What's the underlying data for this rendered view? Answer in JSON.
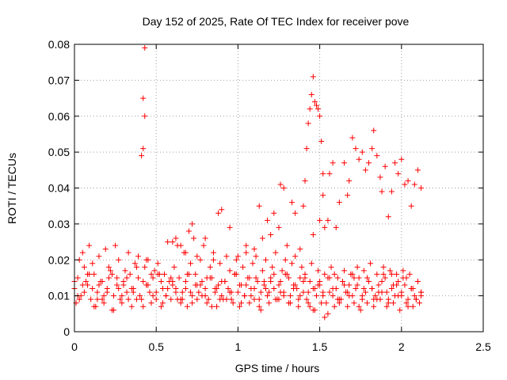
{
  "chart_data": {
    "type": "scatter",
    "title": "Day 152 of 2025, Rate Of TEC Index for receiver pove",
    "xlabel": "GPS time / hours",
    "ylabel": "ROTI / TECUs",
    "xlim": [
      0,
      2.5
    ],
    "ylim": [
      0,
      0.08
    ],
    "grid": true,
    "marker": "+",
    "x_ticks": [
      {
        "value": 0,
        "label": "0"
      },
      {
        "value": 0.5,
        "label": "0.5"
      },
      {
        "value": 1,
        "label": "1"
      },
      {
        "value": 1.5,
        "label": "1.5"
      },
      {
        "value": 2,
        "label": "2"
      },
      {
        "value": 2.5,
        "label": "2.5"
      }
    ],
    "y_ticks": [
      {
        "value": 0,
        "label": "0"
      },
      {
        "value": 0.01,
        "label": "0.01"
      },
      {
        "value": 0.02,
        "label": "0.02"
      },
      {
        "value": 0.03,
        "label": "0.03"
      },
      {
        "value": 0.04,
        "label": "0.04"
      },
      {
        "value": 0.05,
        "label": "0.05"
      },
      {
        "value": 0.06,
        "label": "0.06"
      },
      {
        "value": 0.07,
        "label": "0.07"
      },
      {
        "value": 0.08,
        "label": "0.08"
      }
    ],
    "series": [
      {
        "color": "#ff0000",
        "x": [
          0.0,
          0.02,
          0.04,
          0.06,
          0.08,
          0.1,
          0.12,
          0.14,
          0.16,
          0.18,
          0.2,
          0.22,
          0.24,
          0.26,
          0.28,
          0.3,
          0.32,
          0.34,
          0.36,
          0.38,
          0.4,
          0.42,
          0.44,
          0.46,
          0.48,
          0.5,
          0.52,
          0.54,
          0.56,
          0.58,
          0.6,
          0.62,
          0.64,
          0.66,
          0.68,
          0.7,
          0.72,
          0.74,
          0.76,
          0.78,
          0.8,
          0.82,
          0.84,
          0.86,
          0.88,
          0.9,
          0.92,
          0.94,
          0.96,
          0.98,
          1.0,
          1.02,
          1.04,
          1.06,
          1.08,
          1.1,
          1.12,
          1.14,
          1.16,
          1.18,
          1.2,
          1.22,
          1.24,
          1.26,
          1.28,
          1.3,
          1.32,
          1.34,
          1.36,
          1.38,
          1.4,
          1.42,
          1.44,
          1.46,
          1.48,
          1.5,
          1.52,
          1.54,
          1.56,
          1.58,
          1.6,
          1.62,
          1.64,
          1.66,
          1.68,
          1.7,
          1.72,
          1.74,
          1.76,
          1.78,
          1.8,
          1.82,
          1.84,
          1.86,
          1.88,
          1.9,
          1.92,
          1.94,
          1.96,
          1.98,
          2.0,
          2.02,
          2.04,
          2.06,
          2.08,
          2.1,
          2.12,
          0.01,
          0.03,
          0.05,
          0.07,
          0.09,
          0.11,
          0.13,
          0.15,
          0.17,
          0.19,
          0.21,
          0.23,
          0.25,
          0.27,
          0.29,
          0.31,
          0.33,
          0.35,
          0.37,
          0.39,
          0.41,
          0.43,
          0.45,
          0.47,
          0.49,
          0.51,
          0.53,
          0.55,
          0.57,
          0.59,
          0.61,
          0.63,
          0.65,
          0.67,
          0.69,
          0.71,
          0.73,
          0.75,
          0.77,
          0.79,
          0.81,
          0.83,
          0.85,
          0.87,
          0.89,
          0.91,
          0.93,
          0.95,
          0.97,
          0.99,
          1.01,
          1.03,
          1.05,
          1.07,
          1.09,
          1.11,
          1.13,
          1.15,
          1.17,
          1.19,
          1.21,
          1.23,
          1.25,
          1.27,
          1.29,
          1.31,
          1.33,
          1.35,
          1.37,
          1.39,
          1.41,
          1.43,
          1.45,
          1.47,
          1.49,
          1.51,
          1.53,
          1.55,
          1.57,
          1.59,
          1.61,
          1.63,
          1.65,
          1.67,
          1.69,
          1.71,
          1.73,
          1.75,
          1.77,
          1.79,
          1.81,
          1.83,
          1.85,
          1.87,
          1.89,
          1.91,
          1.93,
          1.95,
          1.97,
          1.99,
          2.01,
          2.03,
          2.05,
          2.07,
          2.09,
          2.11,
          0.0,
          0.03,
          0.06,
          0.09,
          0.12,
          0.15,
          0.18,
          0.21,
          0.24,
          0.27,
          0.3,
          0.33,
          0.36,
          0.39,
          0.42,
          0.45,
          0.48,
          0.51,
          0.54,
          0.57,
          0.6,
          0.63,
          0.66,
          0.69,
          0.72,
          0.75,
          0.78,
          0.81,
          0.84,
          0.87,
          0.9,
          0.93,
          0.96,
          0.99,
          1.02,
          1.05,
          1.08,
          1.11,
          1.14,
          1.17,
          1.2,
          1.23,
          1.26,
          1.29,
          1.32,
          1.35,
          1.38,
          1.41,
          1.44,
          1.47,
          1.5,
          1.53,
          1.56,
          1.59,
          1.62,
          1.65,
          1.68,
          1.71,
          1.74,
          1.77,
          1.8,
          1.83,
          1.86,
          1.89,
          1.92,
          1.95,
          1.98,
          2.01,
          2.04,
          2.07,
          2.1,
          2.12,
          0.02,
          0.05,
          0.08,
          0.11,
          0.14,
          0.17,
          0.2,
          0.23,
          0.26,
          0.29,
          0.32,
          0.35,
          0.38,
          0.44,
          0.47,
          0.5,
          0.53,
          0.56,
          0.59,
          0.62,
          0.65,
          0.68,
          0.71,
          0.74,
          0.77,
          0.8,
          0.83,
          0.86,
          0.89,
          0.92,
          0.95,
          0.98,
          1.01,
          1.04,
          1.07,
          1.1,
          1.13,
          1.16,
          1.19,
          1.22,
          1.25,
          1.28,
          1.31,
          1.34,
          1.37,
          1.4,
          1.43,
          1.46,
          1.49,
          1.52,
          1.55,
          1.58,
          1.61,
          1.64,
          1.67,
          1.7,
          1.73,
          1.76,
          1.79,
          1.82,
          1.85,
          1.88,
          1.91,
          1.94,
          1.97,
          2.0,
          2.03,
          2.06,
          2.09,
          2.12,
          0.41,
          0.42,
          0.42,
          0.43,
          0.43,
          0.44,
          0.6,
          0.62,
          0.65,
          0.68,
          0.7,
          0.72,
          0.75,
          0.8,
          0.85,
          0.88,
          0.9,
          0.95,
          1.0,
          1.05,
          1.1,
          1.13,
          1.15,
          1.18,
          1.2,
          1.22,
          1.25,
          1.26,
          1.28,
          1.3,
          1.33,
          1.35,
          1.38,
          1.4,
          1.41,
          1.42,
          1.43,
          1.44,
          1.45,
          1.46,
          1.47,
          1.48,
          1.49,
          1.5,
          1.51,
          1.52,
          1.55,
          1.6,
          1.62,
          1.65,
          1.67,
          1.68,
          1.7,
          1.72,
          1.74,
          1.76,
          1.78,
          1.8,
          1.82,
          1.83,
          1.85,
          1.87,
          1.88,
          1.9,
          1.92,
          1.94,
          1.96,
          1.98,
          2.0,
          2.02,
          2.04,
          2.06,
          2.08,
          2.1,
          2.12,
          1.53,
          1.46,
          1.5,
          1.52,
          1.56,
          1.58
        ],
        "y": [
          0.012,
          0.015,
          0.01,
          0.018,
          0.013,
          0.009,
          0.016,
          0.011,
          0.014,
          0.008,
          0.012,
          0.017,
          0.01,
          0.015,
          0.009,
          0.013,
          0.011,
          0.016,
          0.012,
          0.018,
          0.01,
          0.014,
          0.013,
          0.011,
          0.015,
          0.009,
          0.016,
          0.012,
          0.01,
          0.014,
          0.013,
          0.011,
          0.015,
          0.009,
          0.012,
          0.016,
          0.01,
          0.013,
          0.011,
          0.014,
          0.012,
          0.009,
          0.015,
          0.011,
          0.013,
          0.01,
          0.014,
          0.012,
          0.009,
          0.016,
          0.011,
          0.013,
          0.01,
          0.015,
          0.012,
          0.009,
          0.014,
          0.011,
          0.013,
          0.01,
          0.015,
          0.012,
          0.009,
          0.014,
          0.011,
          0.016,
          0.01,
          0.013,
          0.012,
          0.015,
          0.011,
          0.009,
          0.014,
          0.012,
          0.01,
          0.013,
          0.011,
          0.008,
          0.015,
          0.01,
          0.012,
          0.009,
          0.014,
          0.011,
          0.013,
          0.01,
          0.012,
          0.015,
          0.009,
          0.011,
          0.014,
          0.012,
          0.01,
          0.013,
          0.011,
          0.015,
          0.009,
          0.012,
          0.01,
          0.014,
          0.011,
          0.013,
          0.009,
          0.012,
          0.01,
          0.014,
          0.011,
          0.008,
          0.02,
          0.022,
          0.014,
          0.024,
          0.019,
          0.007,
          0.021,
          0.009,
          0.023,
          0.018,
          0.006,
          0.024,
          0.02,
          0.008,
          0.017,
          0.022,
          0.007,
          0.019,
          0.021,
          0.009,
          0.018,
          0.02,
          0.008,
          0.017,
          0.019,
          0.007,
          0.016,
          0.025,
          0.009,
          0.018,
          0.024,
          0.008,
          0.022,
          0.007,
          0.019,
          0.026,
          0.009,
          0.02,
          0.024,
          0.008,
          0.018,
          0.022,
          0.007,
          0.019,
          0.009,
          0.021,
          0.017,
          0.008,
          0.02,
          0.007,
          0.018,
          0.022,
          0.008,
          0.019,
          0.021,
          0.007,
          0.017,
          0.02,
          0.008,
          0.018,
          0.022,
          0.009,
          0.017,
          0.02,
          0.008,
          0.019,
          0.021,
          0.007,
          0.018,
          0.016,
          0.008,
          0.019,
          0.006,
          0.017,
          0.008,
          0.016,
          0.005,
          0.018,
          0.007,
          0.015,
          0.009,
          0.017,
          0.007,
          0.016,
          0.008,
          0.018,
          0.006,
          0.017,
          0.008,
          0.019,
          0.007,
          0.016,
          0.009,
          0.018,
          0.007,
          0.017,
          0.008,
          0.016,
          0.006,
          0.017,
          0.008,
          0.016,
          0.007,
          0.009,
          0.008,
          0.014,
          0.009,
          0.011,
          0.016,
          0.007,
          0.013,
          0.01,
          0.015,
          0.006,
          0.012,
          0.014,
          0.009,
          0.011,
          0.015,
          0.007,
          0.013,
          0.01,
          0.016,
          0.008,
          0.012,
          0.014,
          0.009,
          0.011,
          0.016,
          0.008,
          0.013,
          0.01,
          0.015,
          0.007,
          0.012,
          0.014,
          0.009,
          0.011,
          0.016,
          0.008,
          0.013,
          0.01,
          0.015,
          0.006,
          0.012,
          0.014,
          0.009,
          0.011,
          0.016,
          0.008,
          0.013,
          0.01,
          0.015,
          0.007,
          0.012,
          0.014,
          0.004,
          0.011,
          0.016,
          0.008,
          0.013,
          0.01,
          0.015,
          0.007,
          0.012,
          0.014,
          0.009,
          0.011,
          0.016,
          0.008,
          0.013,
          0.01,
          0.015,
          0.007,
          0.012,
          0.014,
          0.01,
          0.01,
          0.013,
          0.016,
          0.012,
          0.009,
          0.014,
          0.011,
          0.016,
          0.013,
          0.01,
          0.015,
          0.012,
          0.009,
          0.013,
          0.016,
          0.011,
          0.014,
          0.01,
          0.015,
          0.012,
          0.009,
          0.014,
          0.011,
          0.016,
          0.013,
          0.01,
          0.015,
          0.012,
          0.009,
          0.014,
          0.011,
          0.016,
          0.013,
          0.01,
          0.015,
          0.012,
          0.009,
          0.014,
          0.011,
          0.016,
          0.013,
          0.01,
          0.015,
          0.012,
          0.009,
          0.014,
          0.011,
          0.006,
          0.013,
          0.01,
          0.015,
          0.012,
          0.009,
          0.014,
          0.011,
          0.016,
          0.013,
          0.01,
          0.015,
          0.012,
          0.009,
          0.014,
          0.011,
          0.016,
          0.013,
          0.01,
          0.015,
          0.012,
          0.009,
          0.011,
          0.049,
          0.051,
          0.065,
          0.06,
          0.079,
          0.02,
          0.025,
          0.026,
          0.024,
          0.022,
          0.028,
          0.03,
          0.021,
          0.026,
          0.02,
          0.033,
          0.034,
          0.029,
          0.021,
          0.024,
          0.023,
          0.035,
          0.026,
          0.031,
          0.027,
          0.033,
          0.029,
          0.041,
          0.04,
          0.024,
          0.036,
          0.033,
          0.023,
          0.035,
          0.042,
          0.051,
          0.058,
          0.062,
          0.066,
          0.071,
          0.064,
          0.063,
          0.062,
          0.06,
          0.053,
          0.044,
          0.031,
          0.029,
          0.036,
          0.047,
          0.038,
          0.042,
          0.054,
          0.051,
          0.048,
          0.05,
          0.045,
          0.047,
          0.051,
          0.056,
          0.049,
          0.043,
          0.039,
          0.046,
          0.032,
          0.039,
          0.047,
          0.044,
          0.048,
          0.041,
          0.042,
          0.035,
          0.041,
          0.045,
          0.04,
          0.029,
          0.027,
          0.031,
          0.038,
          0.044,
          0.047
        ]
      }
    ]
  }
}
